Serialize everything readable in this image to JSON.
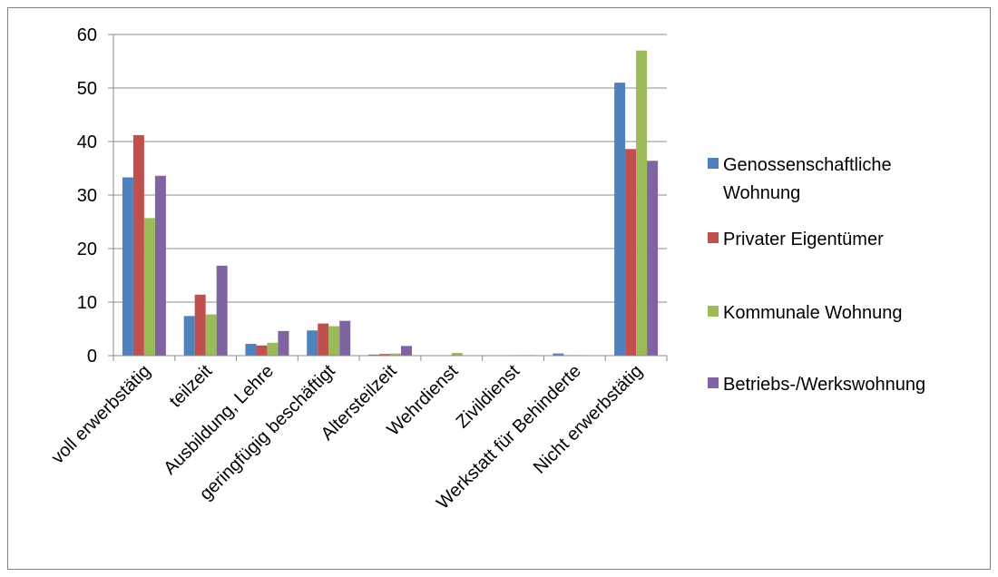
{
  "chart_data": {
    "type": "bar",
    "categories": [
      "voll erwerbstätig",
      "teilzeit",
      "Ausbildung, Lehre",
      "geringfügig beschäftigt",
      "Altersteilzeit",
      "Wehrdienst",
      "Zivildienst",
      "Werkstatt für Behinderte",
      "Nicht erwerbstätig"
    ],
    "series": [
      {
        "name": "Genossenschaftliche Wohnung",
        "color": "#4f81bd",
        "values": [
          33.3,
          7.4,
          2.2,
          4.7,
          0.2,
          0.0,
          0.0,
          0.4,
          51.0
        ]
      },
      {
        "name": "Privater Eigentümer",
        "color": "#c0504d",
        "values": [
          41.2,
          11.4,
          1.9,
          6.0,
          0.3,
          0.0,
          0.0,
          0.1,
          38.6
        ]
      },
      {
        "name": "Kommunale Wohnung",
        "color": "#9bbb59",
        "values": [
          25.7,
          7.7,
          2.4,
          5.5,
          0.4,
          0.5,
          0.1,
          0.1,
          57.0
        ]
      },
      {
        "name": "Betriebs-/Werkswohnung",
        "color": "#8064a2",
        "values": [
          33.6,
          16.8,
          4.6,
          6.5,
          1.8,
          0.0,
          0.1,
          0.0,
          36.4
        ]
      }
    ],
    "yticks": [
      "0",
      "10",
      "20",
      "30",
      "40",
      "50",
      "60"
    ],
    "ylim": [
      0,
      60
    ],
    "grid": true,
    "legend_position": "right"
  }
}
